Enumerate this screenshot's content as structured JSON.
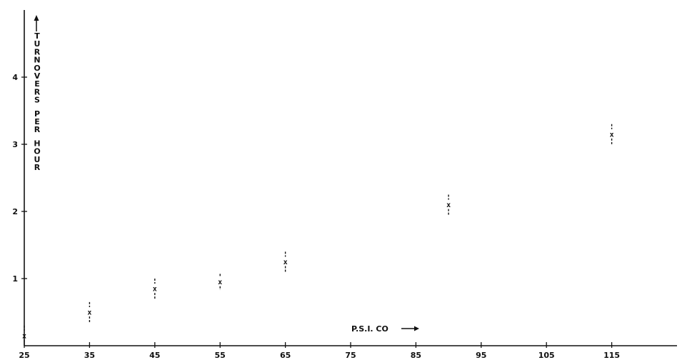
{
  "chart_data": {
    "type": "scatter",
    "xlabel": "P.S.I. CO",
    "ylabel": "TURNOVERS PER HOUR",
    "xlim": [
      25,
      125
    ],
    "ylim": [
      0,
      5
    ],
    "x_ticks": [
      25,
      35,
      45,
      55,
      65,
      75,
      85,
      95,
      105,
      115
    ],
    "x_tick_labels": [
      "25",
      "35",
      "45",
      "55",
      "65",
      "75",
      "85",
      "95",
      "105",
      "115"
    ],
    "y_ticks": [
      1,
      2,
      3,
      4
    ],
    "y_tick_labels": [
      "1",
      "2",
      "3",
      "4"
    ],
    "grid": false,
    "series": [
      {
        "marker": "x",
        "points": [
          {
            "x": 25,
            "y": 0.15,
            "err_low": 0.1,
            "err_high": 0.15
          },
          {
            "x": 35,
            "y": 0.5,
            "err_low": 0.15,
            "err_high": 0.15
          },
          {
            "x": 45,
            "y": 0.85,
            "err_low": 0.15,
            "err_high": 0.15
          },
          {
            "x": 55,
            "y": 0.95,
            "err_low": 0.12,
            "err_high": 0.12
          },
          {
            "x": 65,
            "y": 1.25,
            "err_low": 0.15,
            "err_high": 0.15
          },
          {
            "x": 90,
            "y": 2.1,
            "err_low": 0.15,
            "err_high": 0.15
          },
          {
            "x": 115,
            "y": 3.15,
            "err_low": 0.15,
            "err_high": 0.15
          }
        ]
      }
    ]
  }
}
